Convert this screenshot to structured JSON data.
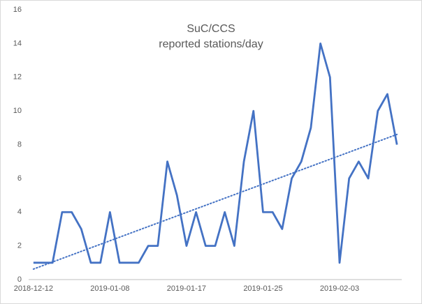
{
  "chart_data": {
    "type": "line",
    "title": "SuC/CCS",
    "subtitle": "reported stations/day",
    "categories": [
      "2018-12-12",
      null,
      null,
      null,
      null,
      null,
      null,
      null,
      "2019-01-08",
      null,
      null,
      null,
      null,
      null,
      null,
      null,
      "2019-01-17",
      null,
      null,
      null,
      null,
      null,
      null,
      null,
      "2019-01-25",
      null,
      null,
      null,
      null,
      null,
      null,
      null,
      "2019-02-03",
      null,
      null,
      null,
      null,
      null,
      null
    ],
    "series": [
      {
        "name": "reported stations/day",
        "color": "#4472c4",
        "values": [
          1,
          1,
          1,
          4,
          4,
          3,
          1,
          1,
          4,
          1,
          1,
          1,
          2,
          2,
          7,
          5,
          2,
          4,
          2,
          2,
          4,
          2,
          7,
          10,
          4,
          4,
          3,
          6,
          7,
          9,
          14,
          12,
          1,
          6,
          7,
          6,
          10,
          11,
          8
        ]
      }
    ],
    "trendline": "linear",
    "ylim": [
      0,
      16
    ],
    "yticks": [
      0,
      2,
      4,
      6,
      8,
      10,
      12,
      14,
      16
    ],
    "grid": false
  }
}
